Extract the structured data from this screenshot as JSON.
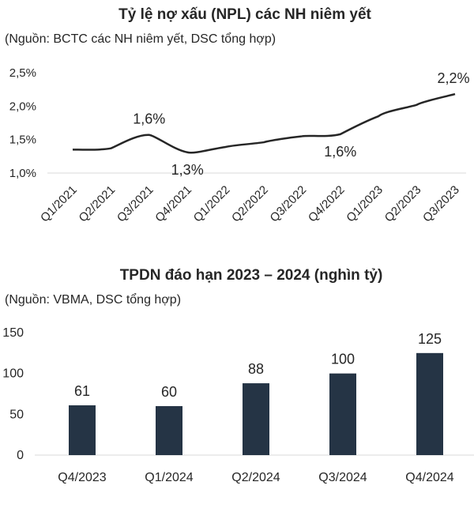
{
  "chart_data": [
    {
      "type": "line",
      "title": "Tỷ lệ nợ xấu (NPL) các NH niêm yết",
      "source": "(Nguồn: BCTC các NH niêm yết, DSC tổng hợp)",
      "categories": [
        "Q1/2021",
        "Q2/2021",
        "Q3/2021",
        "Q4/2021",
        "Q1/2022",
        "Q2/2022",
        "Q3/2022",
        "Q4/2022",
        "Q1/2023",
        "Q2/2023",
        "Q3/2023"
      ],
      "values": [
        1.35,
        1.37,
        1.57,
        1.31,
        1.39,
        1.46,
        1.55,
        1.58,
        1.85,
        2.02,
        2.18
      ],
      "yticks": [
        1.0,
        1.5,
        2.0,
        2.5
      ],
      "ytick_labels": [
        "1,0%",
        "1,5%",
        "2,0%",
        "2,5%"
      ],
      "ylim": [
        1.0,
        2.5
      ],
      "annotations": [
        {
          "index": 2,
          "text": "1,6%",
          "position": "above"
        },
        {
          "index": 3,
          "text": "1,3%",
          "position": "below"
        },
        {
          "index": 7,
          "text": "1,6%",
          "position": "below"
        },
        {
          "index": 10,
          "text": "2,2%",
          "position": "above"
        }
      ],
      "line_color": "#262626"
    },
    {
      "type": "bar",
      "title": "TPDN đáo hạn 2023 – 2024 (nghìn tỷ)",
      "source": "(Nguồn: VBMA, DSC tổng hợp)",
      "categories": [
        "Q4/2023",
        "Q1/2024",
        "Q2/2024",
        "Q3/2024",
        "Q4/2024"
      ],
      "values": [
        61,
        60,
        88,
        100,
        125
      ],
      "value_labels": [
        "61",
        "60",
        "88",
        "100",
        "125"
      ],
      "yticks": [
        0,
        50,
        100,
        150
      ],
      "ytick_labels": [
        "0",
        "50",
        "100",
        "150"
      ],
      "ylim": [
        0,
        150
      ],
      "bar_color": "#253445"
    }
  ]
}
